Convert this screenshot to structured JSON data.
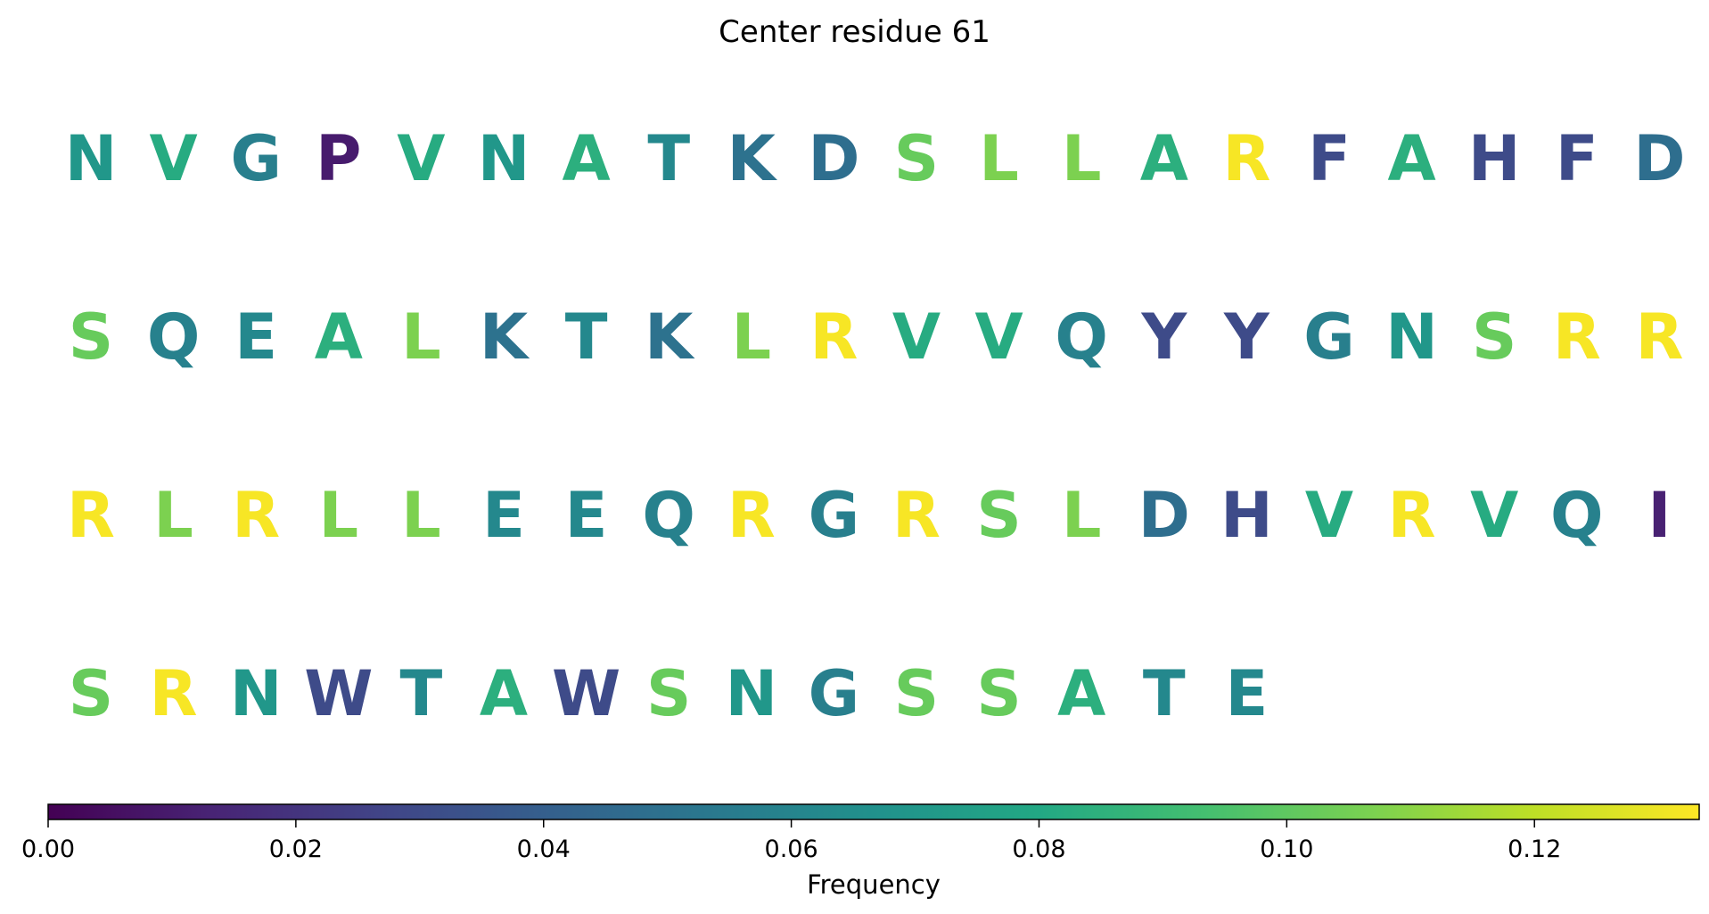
{
  "chart_data": {
    "type": "heatmap",
    "title": "Center residue 61",
    "rows": [
      [
        "N",
        "V",
        "G",
        "P",
        "V",
        "N",
        "A",
        "T",
        "K",
        "D",
        "S",
        "L",
        "L",
        "A",
        "R",
        "F",
        "A",
        "H",
        "F",
        "D"
      ],
      [
        "S",
        "Q",
        "E",
        "A",
        "L",
        "K",
        "T",
        "K",
        "L",
        "R",
        "V",
        "V",
        "Q",
        "Y",
        "Y",
        "G",
        "N",
        "S",
        "R",
        "R"
      ],
      [
        "R",
        "L",
        "R",
        "L",
        "L",
        "E",
        "E",
        "Q",
        "R",
        "G",
        "R",
        "S",
        "L",
        "D",
        "H",
        "V",
        "R",
        "V",
        "Q",
        "I"
      ],
      [
        "S",
        "R",
        "N",
        "W",
        "T",
        "A",
        "W",
        "S",
        "N",
        "G",
        "S",
        "S",
        "A",
        "T",
        "E"
      ]
    ],
    "letter_frequency": {
      "A": 0.084,
      "R": 0.132,
      "N": 0.07,
      "D": 0.048,
      "C": 0.0,
      "Q": 0.058,
      "E": 0.062,
      "G": 0.057,
      "H": 0.03,
      "I": 0.012,
      "L": 0.107,
      "K": 0.05,
      "M": 0.0,
      "F": 0.03,
      "P": 0.01,
      "S": 0.102,
      "T": 0.062,
      "W": 0.03,
      "Y": 0.03,
      "V": 0.082
    },
    "colormap": "viridis",
    "colorbar": {
      "label": "Frequency",
      "range": [
        0,
        0.1333
      ],
      "ticks": [
        0,
        0.02,
        0.04,
        0.06,
        0.08,
        0.1,
        0.12
      ],
      "tick_labels": [
        "0.00",
        "0.02",
        "0.04",
        "0.06",
        "0.08",
        "0.10",
        "0.12"
      ]
    }
  }
}
